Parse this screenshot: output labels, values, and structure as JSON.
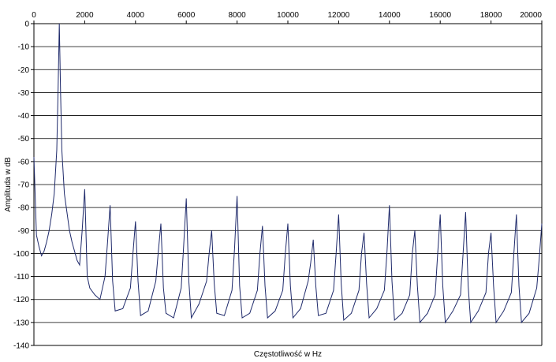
{
  "chart_data": {
    "type": "line",
    "title": "",
    "xlabel": "Częstotliwość w Hz",
    "ylabel": "Amplituda w dB",
    "xlim": [
      0,
      20000
    ],
    "ylim": [
      -140,
      0
    ],
    "x_ticks": [
      0,
      2000,
      4000,
      6000,
      8000,
      10000,
      12000,
      14000,
      16000,
      18000,
      20000
    ],
    "y_ticks": [
      0,
      -10,
      -20,
      -30,
      -40,
      -50,
      -60,
      -70,
      -80,
      -90,
      -100,
      -110,
      -120,
      -130,
      -140
    ],
    "x_tick_position": "top",
    "grid": {
      "horizontal": true,
      "vertical": false
    },
    "legend": "none",
    "line_color": "#1f2a6b",
    "series": [
      {
        "x": [
          0,
          100,
          200,
          300,
          400,
          500,
          600,
          700,
          800,
          900,
          950,
          1000,
          1050,
          1100,
          1200,
          1300,
          1400,
          1500,
          1600,
          1700,
          1800,
          1900,
          2000,
          2100,
          2200,
          2400,
          2600,
          2800,
          2900,
          3000,
          3100,
          3200,
          3500,
          3800,
          3900,
          4000,
          4100,
          4200,
          4500,
          4800,
          4900,
          5000,
          5100,
          5200,
          5500,
          5800,
          5900,
          6000,
          6100,
          6200,
          6500,
          6800,
          6900,
          7000,
          7100,
          7200,
          7500,
          7800,
          7900,
          8000,
          8100,
          8200,
          8500,
          8800,
          8900,
          9000,
          9100,
          9200,
          9500,
          9800,
          9900,
          10000,
          10100,
          10200,
          10500,
          10800,
          10900,
          11000,
          11100,
          11200,
          11500,
          11800,
          11900,
          12000,
          12100,
          12200,
          12500,
          12800,
          12900,
          13000,
          13100,
          13200,
          13500,
          13800,
          13900,
          14000,
          14100,
          14200,
          14500,
          14800,
          14900,
          15000,
          15100,
          15200,
          15500,
          15800,
          15900,
          16000,
          16100,
          16200,
          16500,
          16800,
          16900,
          17000,
          17100,
          17200,
          17500,
          17800,
          17900,
          18000,
          18100,
          18200,
          18500,
          18800,
          18900,
          19000,
          19100,
          19200,
          19500,
          19800,
          19900,
          20000
        ],
        "values": [
          -58,
          -92,
          -97,
          -101,
          -99,
          -95,
          -90,
          -83,
          -74,
          -55,
          -30,
          0,
          -30,
          -55,
          -74,
          -82,
          -90,
          -95,
          -99,
          -103,
          -105,
          -90,
          -72,
          -110,
          -115,
          -118,
          -120,
          -110,
          -95,
          -79,
          -112,
          -125,
          -124,
          -115,
          -100,
          -86,
          -112,
          -127,
          -125,
          -112,
          -99,
          -87,
          -115,
          -126,
          -128,
          -115,
          -96,
          -76,
          -112,
          -128,
          -122,
          -112,
          -100,
          -90,
          -113,
          -126,
          -127,
          -116,
          -98,
          -75,
          -114,
          -128,
          -126,
          -116,
          -100,
          -88,
          -114,
          -128,
          -125,
          -116,
          -100,
          -87,
          -114,
          -128,
          -124,
          -112,
          -104,
          -94,
          -114,
          -127,
          -126,
          -116,
          -100,
          -83,
          -113,
          -129,
          -126,
          -116,
          -100,
          -91,
          -113,
          -128,
          -124,
          -116,
          -100,
          -79,
          -112,
          -129,
          -126,
          -118,
          -100,
          -90,
          -114,
          -130,
          -126,
          -118,
          -100,
          -83,
          -114,
          -130,
          -125,
          -118,
          -100,
          -82,
          -114,
          -130,
          -125,
          -117,
          -100,
          -91,
          -114,
          -130,
          -125,
          -117,
          -100,
          -83,
          -114,
          -130,
          -126,
          -115,
          -102,
          -87
        ]
      }
    ]
  }
}
